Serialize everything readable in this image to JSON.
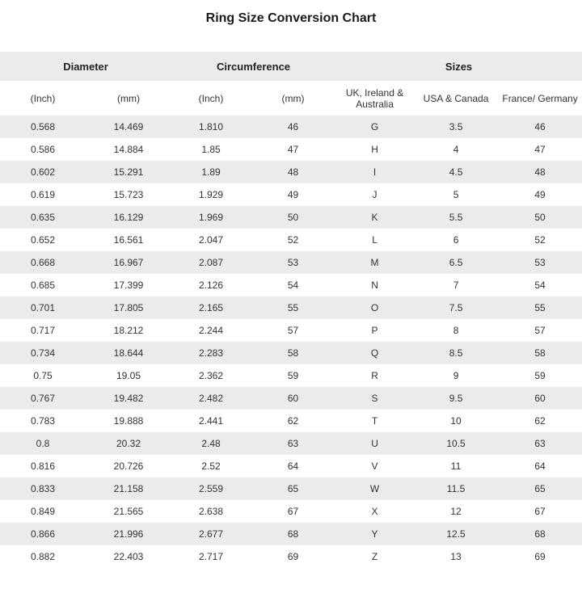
{
  "title": "Ring Size Conversion Chart",
  "colors": {
    "header_bg": "#ebebeb",
    "row_alt_bg": "#ebebeb",
    "text_color": "#333333",
    "title_color": "#1a1a1a"
  },
  "chart_data": {
    "type": "table",
    "title": "Ring Size Conversion Chart",
    "group_headers": [
      {
        "label": "Diameter",
        "colspan": 2
      },
      {
        "label": "Circumference",
        "colspan": 2
      },
      {
        "label": "Sizes",
        "colspan": 3
      }
    ],
    "columns": [
      "(Inch)",
      "(mm)",
      "(Inch)",
      "(mm)",
      "UK, Ireland & Australia",
      "USA & Canada",
      "France/ Germany"
    ],
    "rows": [
      [
        "0.568",
        "14.469",
        "1.810",
        "46",
        "G",
        "3.5",
        "46"
      ],
      [
        "0.586",
        "14.884",
        "1.85",
        "47",
        "H",
        "4",
        "47"
      ],
      [
        "0.602",
        "15.291",
        "1.89",
        "48",
        "I",
        "4.5",
        "48"
      ],
      [
        "0.619",
        "15.723",
        "1.929",
        "49",
        "J",
        "5",
        "49"
      ],
      [
        "0.635",
        "16.129",
        "1.969",
        "50",
        "K",
        "5.5",
        "50"
      ],
      [
        "0.652",
        "16.561",
        "2.047",
        "52",
        "L",
        "6",
        "52"
      ],
      [
        "0.668",
        "16.967",
        "2.087",
        "53",
        "M",
        "6.5",
        "53"
      ],
      [
        "0.685",
        "17.399",
        "2.126",
        "54",
        "N",
        "7",
        "54"
      ],
      [
        "0.701",
        "17.805",
        "2.165",
        "55",
        "O",
        "7.5",
        "55"
      ],
      [
        "0.717",
        "18.212",
        "2.244",
        "57",
        "P",
        "8",
        "57"
      ],
      [
        "0.734",
        "18.644",
        "2.283",
        "58",
        "Q",
        "8.5",
        "58"
      ],
      [
        "0.75",
        "19.05",
        "2.362",
        "59",
        "R",
        "9",
        "59"
      ],
      [
        "0.767",
        "19.482",
        "2.482",
        "60",
        "S",
        "9.5",
        "60"
      ],
      [
        "0.783",
        "19.888",
        "2.441",
        "62",
        "T",
        "10",
        "62"
      ],
      [
        "0.8",
        "20.32",
        "2.48",
        "63",
        "U",
        "10.5",
        "63"
      ],
      [
        "0.816",
        "20.726",
        "2.52",
        "64",
        "V",
        "11",
        "64"
      ],
      [
        "0.833",
        "21.158",
        "2.559",
        "65",
        "W",
        "11.5",
        "65"
      ],
      [
        "0.849",
        "21.565",
        "2.638",
        "67",
        "X",
        "12",
        "67"
      ],
      [
        "0.866",
        "21.996",
        "2.677",
        "68",
        "Y",
        "12.5",
        "68"
      ],
      [
        "0.882",
        "22.403",
        "2.717",
        "69",
        "Z",
        "13",
        "69"
      ]
    ]
  }
}
